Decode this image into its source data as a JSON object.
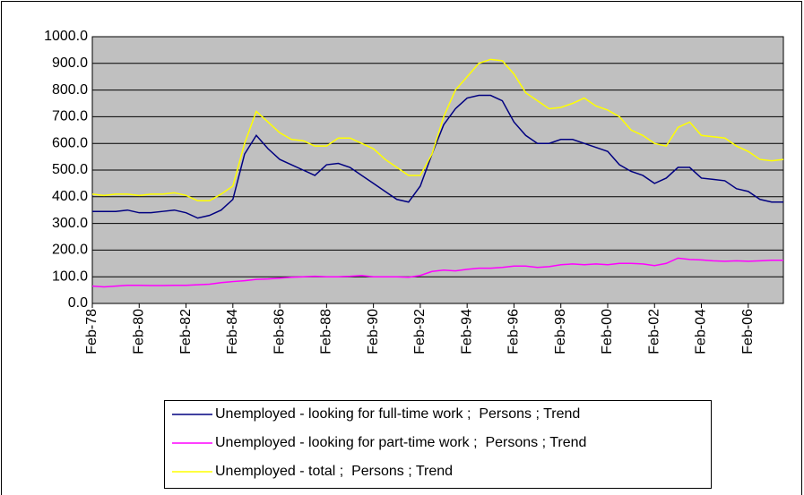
{
  "chart_data": {
    "type": "line",
    "categories": [
      "Feb-78",
      null,
      null,
      null,
      "Feb-80",
      null,
      null,
      null,
      "Feb-82",
      null,
      null,
      null,
      "Feb-84",
      null,
      null,
      null,
      "Feb-86",
      null,
      null,
      null,
      "Feb-88",
      null,
      null,
      null,
      "Feb-90",
      null,
      null,
      null,
      "Feb-92",
      null,
      null,
      null,
      "Feb-94",
      null,
      null,
      null,
      "Feb-96",
      null,
      null,
      null,
      "Feb-98",
      null,
      null,
      null,
      "Feb-00",
      null,
      null,
      null,
      "Feb-02",
      null,
      null,
      null,
      "Feb-04",
      null,
      null,
      null,
      "Feb-06",
      null,
      null,
      null
    ],
    "series": [
      {
        "name": "Unemployed - looking for full-time work ;  Persons ; Trend",
        "color": "#000080",
        "values": [
          345,
          345,
          345,
          350,
          340,
          340,
          345,
          350,
          340,
          320,
          330,
          350,
          390,
          560,
          630,
          580,
          540,
          520,
          500,
          480,
          520,
          525,
          510,
          480,
          450,
          420,
          390,
          380,
          440,
          560,
          670,
          730,
          770,
          780,
          780,
          760,
          680,
          630,
          600,
          600,
          615,
          615,
          600,
          585,
          570,
          520,
          495,
          480,
          450,
          470,
          510,
          510,
          470,
          465,
          460,
          430,
          420,
          390,
          380,
          380
        ]
      },
      {
        "name": "Unemployed - looking for part-time work ;  Persons ; Trend",
        "color": "#ff00ff",
        "values": [
          65,
          62,
          65,
          68,
          68,
          67,
          67,
          68,
          68,
          70,
          72,
          78,
          82,
          85,
          90,
          92,
          95,
          98,
          100,
          102,
          100,
          100,
          102,
          105,
          100,
          100,
          100,
          98,
          105,
          120,
          125,
          122,
          128,
          132,
          132,
          135,
          140,
          140,
          135,
          138,
          145,
          148,
          145,
          148,
          145,
          150,
          150,
          148,
          142,
          150,
          170,
          165,
          163,
          160,
          158,
          160,
          158,
          160,
          162,
          162
        ]
      },
      {
        "name": "Unemployed - total ;  Persons ; Trend",
        "color": "#ffff00",
        "values": [
          410,
          405,
          410,
          410,
          405,
          410,
          410,
          415,
          405,
          385,
          385,
          410,
          440,
          600,
          720,
          680,
          640,
          615,
          610,
          590,
          590,
          620,
          620,
          600,
          580,
          540,
          510,
          480,
          480,
          560,
          700,
          800,
          850,
          900,
          915,
          910,
          860,
          790,
          760,
          730,
          735,
          750,
          770,
          740,
          725,
          700,
          650,
          630,
          600,
          590,
          660,
          680,
          630,
          625,
          620,
          590,
          570,
          540,
          535,
          540
        ]
      }
    ],
    "ylim": [
      0,
      1000
    ],
    "yticks": [
      {
        "value": 0,
        "label": "0.0"
      },
      {
        "value": 100,
        "label": "100.0"
      },
      {
        "value": 200,
        "label": "200.0"
      },
      {
        "value": 300,
        "label": "300.0"
      },
      {
        "value": 400,
        "label": "400.0"
      },
      {
        "value": 500,
        "label": "500.0"
      },
      {
        "value": 600,
        "label": "600.0"
      },
      {
        "value": 700,
        "label": "700.0"
      },
      {
        "value": 800,
        "label": "800.0"
      },
      {
        "value": 900,
        "label": "900.0"
      },
      {
        "value": 1000,
        "label": "1000.0"
      }
    ],
    "grid": true,
    "legend": "bottom"
  }
}
